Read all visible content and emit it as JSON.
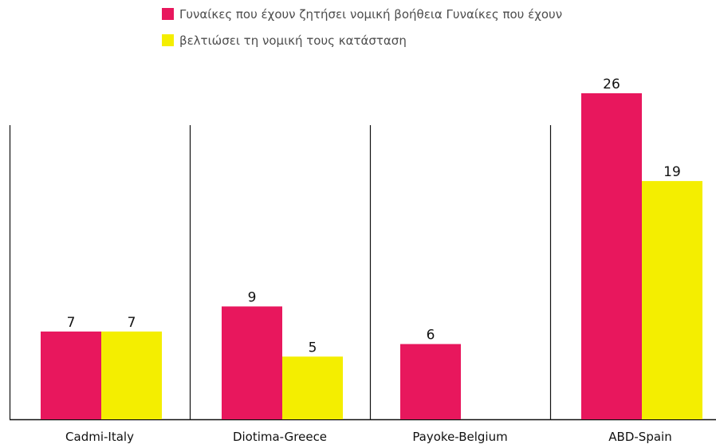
{
  "chart_data": {
    "type": "bar",
    "categories": [
      "Cadmi-Italy",
      "Diotima-Greece",
      "Payoke-Belgium",
      "ABD-Spain"
    ],
    "series": [
      {
        "name": "Γυναίκες που έχουν ζητήσει νομική βοήθεια",
        "values": [
          7,
          9,
          6,
          26
        ],
        "color": "#E8175D"
      },
      {
        "name": "Γυναίκες που έχουν βελτιώσει τη νομική τους κατάσταση",
        "values": [
          7,
          5,
          null,
          19
        ],
        "color": "#F4EE00"
      }
    ],
    "legend_lines": [
      "Γυναίκες που έχουν ζητήσει νομική βοήθεια Γυναίκες που έχουν",
      "βελτιώσει τη νομική τους κατάσταση"
    ],
    "data_labels": true,
    "ylim": [
      0,
      26
    ],
    "grid": false,
    "legend": "top"
  }
}
